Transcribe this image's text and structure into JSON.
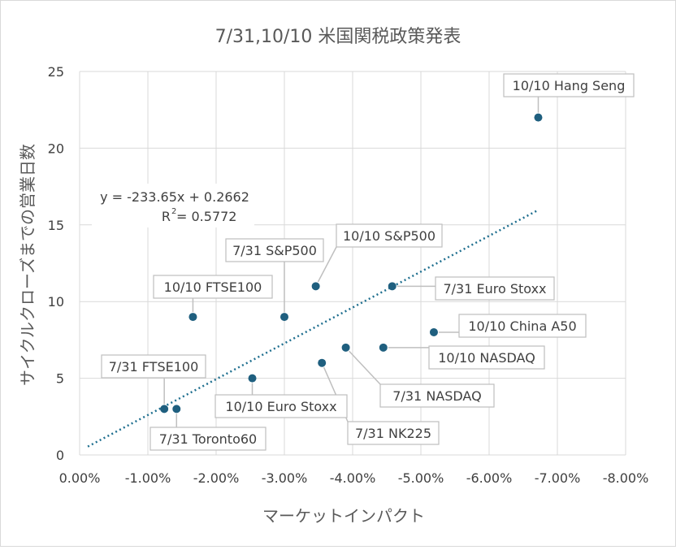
{
  "chart_data": {
    "type": "scatter",
    "title": "7/31,10/10 米国関税政策発表",
    "xlabel": "マーケットインパクト",
    "ylabel": "サイクルクローズまでの営業日数",
    "xlim": [
      0.0,
      -0.08
    ],
    "ylim": [
      0,
      25
    ],
    "x_ticks": [
      0.0,
      -0.01,
      -0.02,
      -0.03,
      -0.04,
      -0.05,
      -0.06,
      -0.07,
      -0.08
    ],
    "x_tick_labels": [
      "0.00%",
      "-1.00%",
      "-2.00%",
      "-3.00%",
      "-4.00%",
      "-5.00%",
      "-6.00%",
      "-7.00%",
      "-8.00%"
    ],
    "y_ticks": [
      0,
      5,
      10,
      15,
      20,
      25
    ],
    "y_tick_labels": [
      "0",
      "5",
      "10",
      "15",
      "20",
      "25"
    ],
    "grid": true,
    "marker_color": "#1f5f7f",
    "trend_color": "#1f6f8f",
    "points": [
      {
        "label": "10/10 Hang Seng",
        "x": -0.0672,
        "y": 22
      },
      {
        "label": "10/10 S&P500",
        "x": -0.0346,
        "y": 11
      },
      {
        "label": "7/31 Euro Stoxx",
        "x": -0.0458,
        "y": 11
      },
      {
        "label": "7/31 S&P500",
        "x": -0.03,
        "y": 9
      },
      {
        "label": "10/10 FTSE100",
        "x": -0.0166,
        "y": 9
      },
      {
        "label": "10/10 China A50",
        "x": -0.0519,
        "y": 8
      },
      {
        "label": "10/10 NASDAQ",
        "x": -0.0445,
        "y": 7
      },
      {
        "label": "7/31 NASDAQ",
        "x": -0.039,
        "y": 7
      },
      {
        "label": "7/31 NK225",
        "x": -0.0355,
        "y": 6
      },
      {
        "label": "10/10 Euro Stoxx",
        "x": -0.0253,
        "y": 5
      },
      {
        "label": "7/31 FTSE100",
        "x": -0.0124,
        "y": 3
      },
      {
        "label": "7/31 Toronto60",
        "x": -0.0142,
        "y": 3
      }
    ],
    "trendline": {
      "type": "linear",
      "slope": -233.65,
      "intercept": 0.2662,
      "x_range": [
        -0.0012,
        -0.0672
      ],
      "equation": "y = -233.65x + 0.2662",
      "r2_label": "R",
      "r2_value": " = 0.5772"
    }
  }
}
